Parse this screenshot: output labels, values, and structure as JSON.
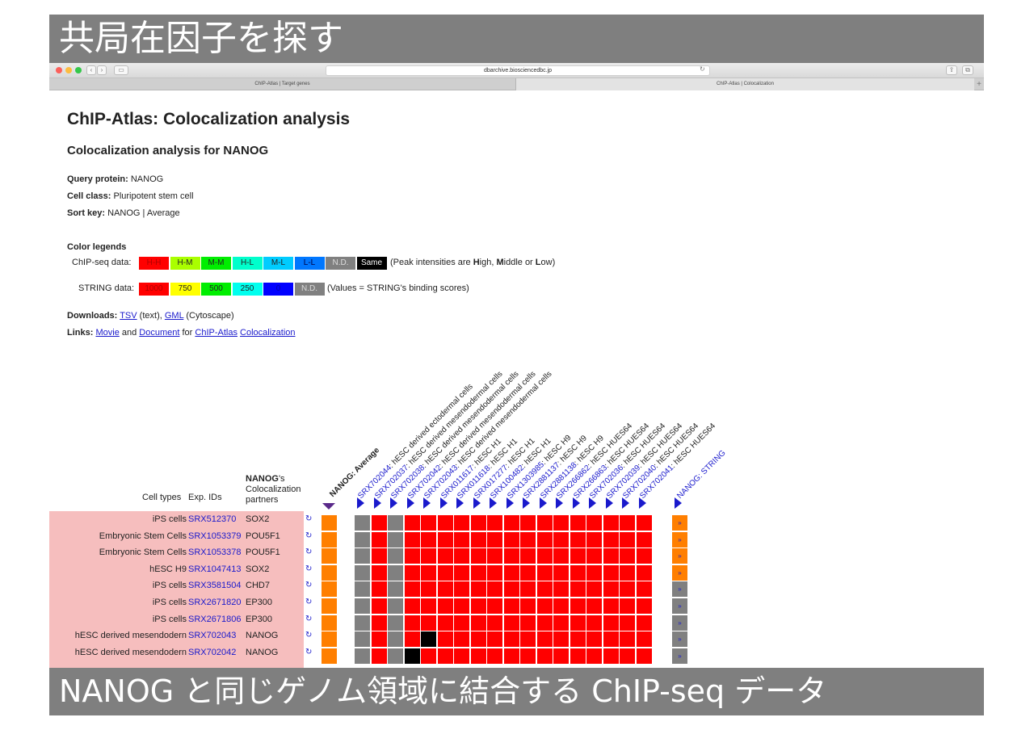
{
  "slide": {
    "top_title": "共局在因子を探す",
    "bottom_caption": "NANOG と同じゲノム領域に結合する ChIP-seq データ"
  },
  "browser": {
    "url": "dbarchive.biosciencedbc.jp",
    "tabs": [
      "ChIP-Atlas | Target genes",
      "ChIP-Atlas | Colocalization"
    ],
    "new_tab": "+"
  },
  "page": {
    "title": "ChIP-Atlas: Colocalization analysis",
    "subtitle": "Colocalization analysis for NANOG",
    "query_label": "Query protein:",
    "query_value": "NANOG",
    "cell_label": "Cell class:",
    "cell_value": "Pluripotent stem cell",
    "sort_label": "Sort key:",
    "sort_value": "NANOG | Average",
    "legend_heading": "Color legends",
    "chip_label": "ChIP-seq data:",
    "chip_swatches": [
      {
        "text": "H-H",
        "color": "#ff0000",
        "fg": "#b00000"
      },
      {
        "text": "H-M",
        "color": "#aaff00",
        "fg": "#222"
      },
      {
        "text": "M-M",
        "color": "#00ee00",
        "fg": "#222"
      },
      {
        "text": "H-L",
        "color": "#00ffcc",
        "fg": "#222"
      },
      {
        "text": "M-L",
        "color": "#00ccff",
        "fg": "#222"
      },
      {
        "text": "L-L",
        "color": "#0077ff",
        "fg": "#004"
      },
      {
        "text": "N.D.",
        "color": "#808080",
        "fg": "#ddd"
      },
      {
        "text": "Same",
        "color": "#000000",
        "fg": "#fff"
      }
    ],
    "chip_note_pre": "(Peak intensities are ",
    "chip_note_h": "H",
    "chip_note_h_rest": "igh, ",
    "chip_note_m": "M",
    "chip_note_m_rest": "iddle or ",
    "chip_note_l": "L",
    "chip_note_l_rest": "ow)",
    "string_label": "STRING data:",
    "string_swatches": [
      {
        "text": "1000",
        "color": "#ff0000",
        "fg": "#b00000"
      },
      {
        "text": "750",
        "color": "#ffff00",
        "fg": "#222"
      },
      {
        "text": "500",
        "color": "#00ee00",
        "fg": "#222"
      },
      {
        "text": "250",
        "color": "#00ffee",
        "fg": "#222"
      },
      {
        "text": "0",
        "color": "#0000ff",
        "fg": "#0000aa"
      },
      {
        "text": "N.D.",
        "color": "#808080",
        "fg": "#ddd"
      }
    ],
    "string_note": "(Values = STRING's binding scores)",
    "downloads_label": "Downloads:",
    "dl_tsv": "TSV",
    "dl_tsv_note": "(text),",
    "dl_gml": "GML",
    "dl_gml_note": "(Cytoscape)",
    "links_label": "Links:",
    "link_movie": "Movie",
    "link_and": "and",
    "link_document": "Document",
    "link_for": "for",
    "link_chipatlas": "ChIP-Atlas",
    "link_coloc": "Colocalization"
  },
  "table": {
    "col_cell_types": "Cell types",
    "col_exp_ids": "Exp. IDs",
    "col_partners_bold": "NANOG",
    "col_partners_rest1": "'s",
    "col_partners_rest2": "Colocalization",
    "col_partners_rest3": "partners",
    "average_label": "NANOG: Average",
    "string_col_label": "NANOG: STRING",
    "columns": [
      {
        "id": "SRX702044",
        "desc": ": hESC derived ectodermal cells"
      },
      {
        "id": "SRX702037",
        "desc": ": hESC derived mesendodermal cells"
      },
      {
        "id": "SRX702038",
        "desc": ": hESC derived mesendodermal cells"
      },
      {
        "id": "SRX702042",
        "desc": ": hESC derived mesendodermal cells"
      },
      {
        "id": "SRX702043",
        "desc": ": hESC derived mesendodermal cells"
      },
      {
        "id": "SRX011617",
        "desc": ": hESC H1"
      },
      {
        "id": "SRX011618",
        "desc": ": hESC H1"
      },
      {
        "id": "SRX017277",
        "desc": ": hESC H1"
      },
      {
        "id": "SRX100482",
        "desc": ": hESC H1"
      },
      {
        "id": "SRX1303985",
        "desc": ": hESC H9"
      },
      {
        "id": "SRX2881137",
        "desc": ": hESC H9"
      },
      {
        "id": "SRX2881138",
        "desc": ": hESC H9"
      },
      {
        "id": "SRX266862",
        "desc": ": hESC HUES64"
      },
      {
        "id": "SRX266863",
        "desc": ": hESC HUES64"
      },
      {
        "id": "SRX702036",
        "desc": ": hESC HUES64"
      },
      {
        "id": "SRX702039",
        "desc": ": hESC HUES64"
      },
      {
        "id": "SRX702040",
        "desc": ": hESC HUES64"
      },
      {
        "id": "SRX702041",
        "desc": ": hESC HUES64"
      }
    ],
    "rows": [
      {
        "cell": "iPS cells",
        "exp": "SRX512370",
        "partner": "SOX2",
        "string": "orange"
      },
      {
        "cell": "Embryonic Stem Cells",
        "exp": "SRX1053379",
        "partner": "POU5F1",
        "string": "orange"
      },
      {
        "cell": "Embryonic Stem Cells",
        "exp": "SRX1053378",
        "partner": "POU5F1",
        "string": "orange"
      },
      {
        "cell": "hESC H9",
        "exp": "SRX1047413",
        "partner": "SOX2",
        "string": "orange"
      },
      {
        "cell": "iPS cells",
        "exp": "SRX3581504",
        "partner": "CHD7",
        "string": "gray"
      },
      {
        "cell": "iPS cells",
        "exp": "SRX2671820",
        "partner": "EP300",
        "string": "gray"
      },
      {
        "cell": "iPS cells",
        "exp": "SRX2671806",
        "partner": "EP300",
        "string": "gray"
      },
      {
        "cell": "hESC derived mesendodern",
        "exp": "SRX702043",
        "partner": "NANOG",
        "string": "gray"
      },
      {
        "cell": "hESC derived mesendodern",
        "exp": "SRX702042",
        "partner": "NANOG",
        "string": "gray"
      }
    ],
    "refresh_glyph": "↻",
    "string_glyph": "»",
    "colors": {
      "red": "#ff0000",
      "nd": "#808080",
      "same": "#000000",
      "average": "#ff7f00",
      "string_hi": "#ff7f00",
      "string_nd": "#808080",
      "row_bg": "#f6bebe"
    }
  }
}
